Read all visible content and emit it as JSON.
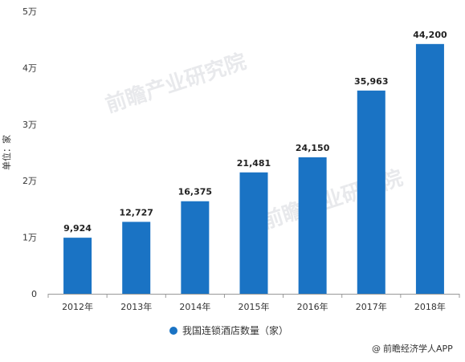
{
  "chart_data": {
    "type": "bar",
    "categories": [
      "2012年",
      "2013年",
      "2014年",
      "2015年",
      "2016年",
      "2017年",
      "2018年"
    ],
    "series": [
      {
        "name": "我国连锁酒店数量（家）",
        "values": [
          9924,
          12727,
          16375,
          21481,
          24150,
          35963,
          44200
        ],
        "labels": [
          "9,924",
          "12,727",
          "16,375",
          "21,481",
          "24,150",
          "35,963",
          "44,200"
        ],
        "color": "#1a73c4"
      }
    ],
    "yticks": [
      "0",
      "1万",
      "2万",
      "3万",
      "4万",
      "5万"
    ],
    "ylim": [
      0,
      50000
    ],
    "ylabel": "单位：家",
    "legend_position": "bottom",
    "grid": false
  },
  "watermark": {
    "text": "前瞻产业研究院"
  },
  "credit": {
    "text": "前瞻经济学人APP",
    "icon": "at-icon"
  }
}
